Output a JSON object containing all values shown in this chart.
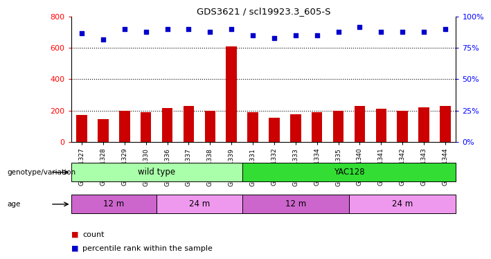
{
  "title": "GDS3621 / scl19923.3_605-S",
  "samples": [
    "GSM491327",
    "GSM491328",
    "GSM491329",
    "GSM491330",
    "GSM491336",
    "GSM491337",
    "GSM491338",
    "GSM491339",
    "GSM491331",
    "GSM491332",
    "GSM491333",
    "GSM491334",
    "GSM491335",
    "GSM491340",
    "GSM491341",
    "GSM491342",
    "GSM491343",
    "GSM491344"
  ],
  "counts": [
    170,
    145,
    200,
    190,
    215,
    230,
    200,
    610,
    190,
    155,
    175,
    190,
    200,
    230,
    210,
    200,
    220,
    230
  ],
  "percentiles": [
    87,
    82,
    90,
    88,
    90,
    90,
    88,
    90,
    85,
    83,
    85,
    85,
    88,
    92,
    88,
    88,
    88,
    90
  ],
  "bar_color": "#cc0000",
  "dot_color": "#0000cc",
  "left_ylim": [
    0,
    800
  ],
  "left_yticks": [
    0,
    200,
    400,
    600,
    800
  ],
  "right_ylim": [
    0,
    100
  ],
  "right_yticks": [
    0,
    25,
    50,
    75,
    100
  ],
  "right_yticklabels": [
    "0%",
    "25%",
    "50%",
    "75%",
    "100%"
  ],
  "grid_lines": [
    200,
    400,
    600
  ],
  "genotype_groups": [
    {
      "label": "wild type",
      "start": 0,
      "end": 8,
      "color": "#aaffaa"
    },
    {
      "label": "YAC128",
      "start": 8,
      "end": 18,
      "color": "#33dd33"
    }
  ],
  "age_groups": [
    {
      "label": "12 m",
      "start": 0,
      "end": 4,
      "color": "#cc66cc"
    },
    {
      "label": "24 m",
      "start": 4,
      "end": 8,
      "color": "#ee99ee"
    },
    {
      "label": "12 m",
      "start": 8,
      "end": 13,
      "color": "#cc66cc"
    },
    {
      "label": "24 m",
      "start": 13,
      "end": 18,
      "color": "#ee99ee"
    }
  ],
  "legend_items": [
    {
      "label": "count",
      "color": "#cc0000"
    },
    {
      "label": "percentile rank within the sample",
      "color": "#0000cc"
    }
  ],
  "genotype_label": "genotype/variation",
  "age_label": "age",
  "background_color": "#ffffff"
}
